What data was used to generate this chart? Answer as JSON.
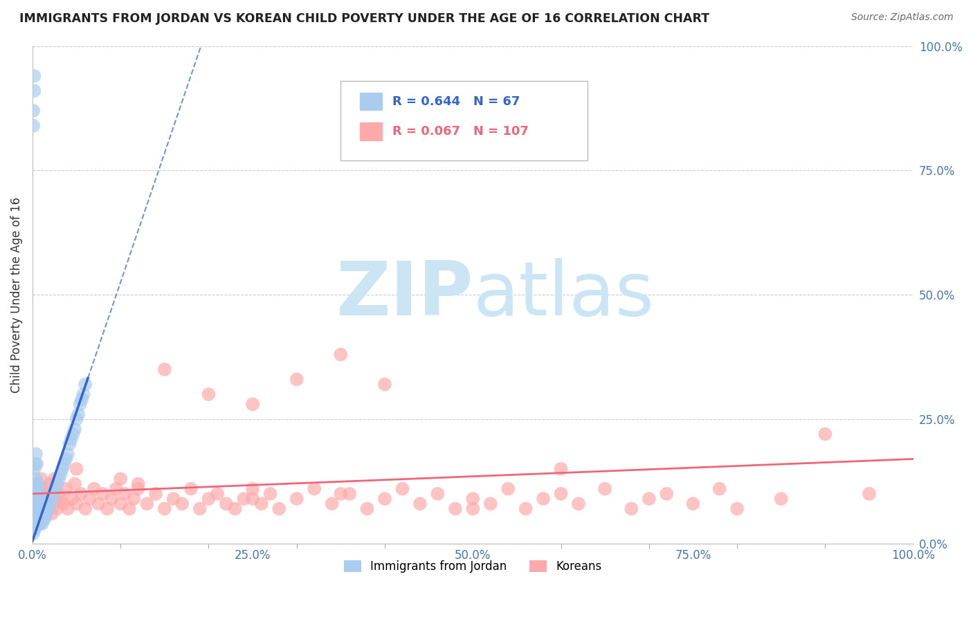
{
  "title": "IMMIGRANTS FROM JORDAN VS KOREAN CHILD POVERTY UNDER THE AGE OF 16 CORRELATION CHART",
  "source": "Source: ZipAtlas.com",
  "ylabel": "Child Poverty Under the Age of 16",
  "xlim": [
    0,
    1.0
  ],
  "ylim": [
    0,
    1.0
  ],
  "xticks": [
    0.0,
    0.25,
    0.5,
    0.75,
    1.0
  ],
  "yticks": [
    0.0,
    0.25,
    0.5,
    0.75,
    1.0
  ],
  "xticklabels": [
    "0.0%",
    "25.0%",
    "50.0%",
    "75.0%",
    "100.0%"
  ],
  "yticklabels": [
    "0.0%",
    "25.0%",
    "50.0%",
    "75.0%",
    "100.0%"
  ],
  "background_color": "#ffffff",
  "grid_color": "#cccccc",
  "watermark_zip": "ZIP",
  "watermark_atlas": "atlas",
  "watermark_color": "#cce5f5",
  "jordan_scatter_color": "#aaccee",
  "korean_scatter_color": "#ffaaaa",
  "jordan_line_color": "#3366cc",
  "korean_line_color": "#ee6677",
  "jordan_R": 0.644,
  "jordan_N": 67,
  "korean_R": 0.067,
  "korean_N": 107,
  "legend_jordan_label": "Immigrants from Jordan",
  "legend_korean_label": "Koreans",
  "jordan_scatter_x": [
    0.001,
    0.001,
    0.001,
    0.001,
    0.002,
    0.002,
    0.002,
    0.002,
    0.003,
    0.003,
    0.003,
    0.003,
    0.004,
    0.004,
    0.004,
    0.004,
    0.005,
    0.005,
    0.005,
    0.005,
    0.006,
    0.006,
    0.006,
    0.007,
    0.007,
    0.007,
    0.008,
    0.008,
    0.009,
    0.009,
    0.01,
    0.01,
    0.011,
    0.011,
    0.012,
    0.013,
    0.014,
    0.015,
    0.016,
    0.018,
    0.02,
    0.022,
    0.024,
    0.026,
    0.028,
    0.03,
    0.032,
    0.034,
    0.036,
    0.038,
    0.04,
    0.042,
    0.044,
    0.046,
    0.048,
    0.05,
    0.052,
    0.054,
    0.056,
    0.058,
    0.06,
    0.002,
    0.002,
    0.001,
    0.001,
    0.001,
    0.001
  ],
  "jordan_scatter_y": [
    0.05,
    0.08,
    0.12,
    0.03,
    0.06,
    0.1,
    0.15,
    0.04,
    0.07,
    0.11,
    0.16,
    0.03,
    0.05,
    0.09,
    0.13,
    0.18,
    0.04,
    0.07,
    0.11,
    0.16,
    0.05,
    0.08,
    0.12,
    0.04,
    0.07,
    0.11,
    0.05,
    0.09,
    0.04,
    0.08,
    0.05,
    0.09,
    0.04,
    0.07,
    0.05,
    0.06,
    0.05,
    0.07,
    0.06,
    0.07,
    0.08,
    0.09,
    0.1,
    0.11,
    0.12,
    0.13,
    0.14,
    0.15,
    0.16,
    0.17,
    0.18,
    0.2,
    0.21,
    0.22,
    0.23,
    0.25,
    0.26,
    0.28,
    0.29,
    0.3,
    0.32,
    0.94,
    0.91,
    0.87,
    0.84,
    0.02,
    0.03
  ],
  "korean_scatter_x": [
    0.001,
    0.002,
    0.003,
    0.004,
    0.005,
    0.005,
    0.006,
    0.007,
    0.008,
    0.009,
    0.01,
    0.01,
    0.012,
    0.013,
    0.015,
    0.015,
    0.017,
    0.018,
    0.02,
    0.02,
    0.022,
    0.025,
    0.025,
    0.028,
    0.03,
    0.032,
    0.035,
    0.038,
    0.04,
    0.045,
    0.048,
    0.05,
    0.055,
    0.06,
    0.065,
    0.07,
    0.075,
    0.08,
    0.085,
    0.09,
    0.095,
    0.1,
    0.105,
    0.11,
    0.115,
    0.12,
    0.13,
    0.14,
    0.15,
    0.16,
    0.17,
    0.18,
    0.19,
    0.2,
    0.21,
    0.22,
    0.23,
    0.24,
    0.25,
    0.26,
    0.27,
    0.28,
    0.3,
    0.32,
    0.34,
    0.36,
    0.38,
    0.4,
    0.42,
    0.44,
    0.46,
    0.48,
    0.5,
    0.52,
    0.54,
    0.56,
    0.58,
    0.6,
    0.62,
    0.65,
    0.68,
    0.7,
    0.72,
    0.75,
    0.78,
    0.8,
    0.85,
    0.9,
    0.95,
    0.15,
    0.2,
    0.25,
    0.3,
    0.35,
    0.4,
    0.05,
    0.1,
    0.003,
    0.004,
    0.005,
    0.006,
    0.008,
    0.12,
    0.25,
    0.35,
    0.5,
    0.6
  ],
  "korean_scatter_y": [
    0.08,
    0.06,
    0.1,
    0.07,
    0.09,
    0.12,
    0.05,
    0.08,
    0.11,
    0.06,
    0.09,
    0.13,
    0.07,
    0.1,
    0.06,
    0.11,
    0.08,
    0.07,
    0.09,
    0.12,
    0.06,
    0.08,
    0.13,
    0.07,
    0.1,
    0.09,
    0.08,
    0.11,
    0.07,
    0.09,
    0.12,
    0.08,
    0.1,
    0.07,
    0.09,
    0.11,
    0.08,
    0.1,
    0.07,
    0.09,
    0.11,
    0.08,
    0.1,
    0.07,
    0.09,
    0.11,
    0.08,
    0.1,
    0.07,
    0.09,
    0.08,
    0.11,
    0.07,
    0.09,
    0.1,
    0.08,
    0.07,
    0.09,
    0.11,
    0.08,
    0.1,
    0.07,
    0.09,
    0.11,
    0.08,
    0.1,
    0.07,
    0.09,
    0.11,
    0.08,
    0.1,
    0.07,
    0.09,
    0.08,
    0.11,
    0.07,
    0.09,
    0.1,
    0.08,
    0.11,
    0.07,
    0.09,
    0.1,
    0.08,
    0.11,
    0.07,
    0.09,
    0.22,
    0.1,
    0.35,
    0.3,
    0.28,
    0.33,
    0.38,
    0.32,
    0.15,
    0.13,
    0.06,
    0.05,
    0.07,
    0.08,
    0.1,
    0.12,
    0.09,
    0.1,
    0.07,
    0.15
  ],
  "jordan_reg_slope": 5.2,
  "jordan_reg_intercept": 0.005,
  "korean_reg_slope": 0.07,
  "korean_reg_intercept": 0.1
}
